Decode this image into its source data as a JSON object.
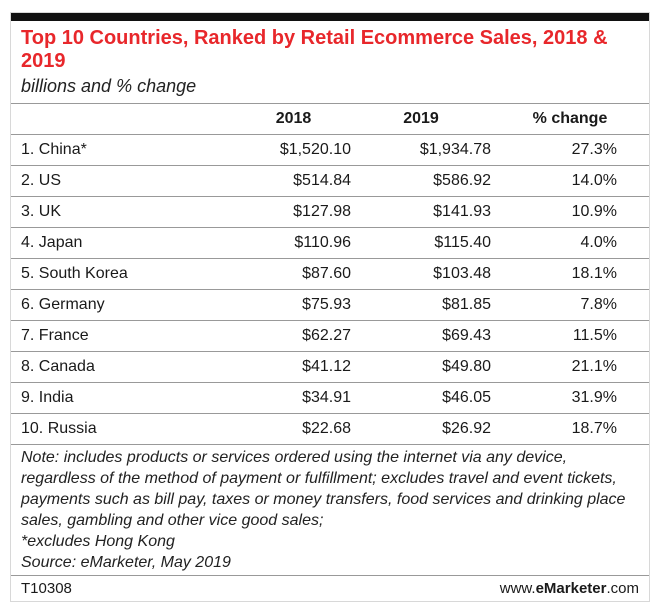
{
  "chart_data": {
    "type": "table",
    "title": "Top 10 Countries, Ranked by Retail Ecommerce Sales, 2018 & 2019",
    "subtitle": "billions and % change",
    "columns": [
      "",
      "2018",
      "2019",
      "% change"
    ],
    "rows": [
      [
        "1. China*",
        "$1,520.10",
        "$1,934.78",
        "27.3%"
      ],
      [
        "2. US",
        "$514.84",
        "$586.92",
        "14.0%"
      ],
      [
        "3. UK",
        "$127.98",
        "$141.93",
        "10.9%"
      ],
      [
        "4. Japan",
        "$110.96",
        "$115.40",
        "4.0%"
      ],
      [
        "5. South Korea",
        "$87.60",
        "$103.48",
        "18.1%"
      ],
      [
        "6. Germany",
        "$75.93",
        "$81.85",
        "7.8%"
      ],
      [
        "7. France",
        "$62.27",
        "$69.43",
        "11.5%"
      ],
      [
        "8. Canada",
        "$41.12",
        "$49.80",
        "21.1%"
      ],
      [
        "9. India",
        "$34.91",
        "$46.05",
        "31.9%"
      ],
      [
        "10. Russia",
        "$22.68",
        "$26.92",
        "18.7%"
      ]
    ],
    "note": "Note: includes products or services ordered using the internet via any device, regardless of the method of payment or fulfillment; excludes travel and event tickets, payments such as bill pay, taxes or money transfers, food services and drinking place sales, gambling and other vice good sales;",
    "footnote": "*excludes Hong Kong",
    "source": "Source: eMarketer, May 2019"
  },
  "footer": {
    "code": "T10308",
    "brand_prefix": "www.",
    "brand_bold": "eMarketer",
    "brand_suffix": ".com"
  },
  "colors": {
    "title": "#e8272b",
    "topbar": "#111111"
  }
}
